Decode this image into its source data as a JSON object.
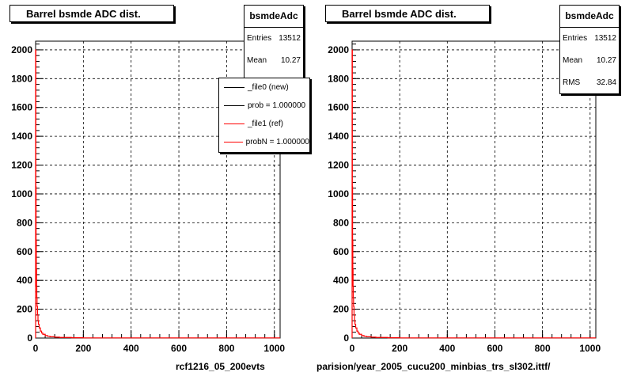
{
  "colors": {
    "ref": "#ff0000",
    "new": "#000000",
    "grid": "#000000"
  },
  "pads": [
    {
      "title": "Barrel bsmde ADC dist.",
      "stats": {
        "name": "bsmdeAdc",
        "rows": [
          {
            "label": "Entries",
            "value": "13512"
          },
          {
            "label": "Mean",
            "value": "10.27"
          }
        ]
      },
      "legend": [
        {
          "label": "_file0 (new)",
          "color": "#000000"
        },
        {
          "label": "prob = 1.000000",
          "color": "#000000"
        },
        {
          "label": "_file1 (ref)",
          "color": "#ff0000"
        },
        {
          "label": "probN = 1.000000",
          "color": "#ff0000"
        }
      ],
      "caption": "rcf1216_05_200evts"
    },
    {
      "title": "Barrel bsmde ADC dist.",
      "stats": {
        "name": "bsmdeAdc",
        "rows": [
          {
            "label": "Entries",
            "value": "13512"
          },
          {
            "label": "Mean",
            "value": "10.27"
          },
          {
            "label": "RMS",
            "value": "32.84"
          }
        ]
      },
      "caption": "parision/year_2005_cucu200_minbias_trs_sl302.ittf/"
    }
  ],
  "chart_data": [
    {
      "type": "histogram",
      "title": "Barrel bsmde ADC dist.",
      "xlim": [
        0,
        1024
      ],
      "ylim": [
        0,
        2060
      ],
      "xticks": [
        0,
        200,
        400,
        600,
        800,
        1000
      ],
      "yticks": [
        0,
        200,
        400,
        600,
        800,
        1000,
        1200,
        1400,
        1600,
        1800,
        2000
      ],
      "grid": true,
      "series": [
        {
          "name": "_file1 (ref)",
          "color": "#ff0000",
          "x": [
            0,
            1,
            2,
            3,
            4,
            5,
            6,
            8,
            10,
            12,
            15,
            20,
            25,
            30,
            40,
            50,
            60,
            80,
            100,
            150,
            200,
            1024
          ],
          "y": [
            2000,
            1050,
            680,
            480,
            360,
            280,
            220,
            160,
            120,
            95,
            70,
            48,
            35,
            26,
            17,
            12,
            9,
            6,
            4,
            2,
            1,
            0
          ]
        }
      ]
    },
    {
      "type": "histogram",
      "title": "Barrel bsmde ADC dist.",
      "xlim": [
        0,
        1024
      ],
      "ylim": [
        0,
        2060
      ],
      "xticks": [
        0,
        200,
        400,
        600,
        800,
        1000
      ],
      "yticks": [
        0,
        200,
        400,
        600,
        800,
        1000,
        1200,
        1400,
        1600,
        1800,
        2000
      ],
      "grid": true,
      "series": [
        {
          "name": "bsmdeAdc",
          "color": "#ff0000",
          "x": [
            0,
            1,
            2,
            3,
            4,
            5,
            6,
            8,
            10,
            12,
            15,
            20,
            25,
            30,
            40,
            50,
            60,
            80,
            100,
            150,
            200,
            1024
          ],
          "y": [
            2000,
            1050,
            680,
            480,
            360,
            280,
            220,
            160,
            120,
            95,
            70,
            48,
            35,
            26,
            17,
            12,
            9,
            6,
            4,
            2,
            1,
            0
          ]
        }
      ]
    }
  ]
}
